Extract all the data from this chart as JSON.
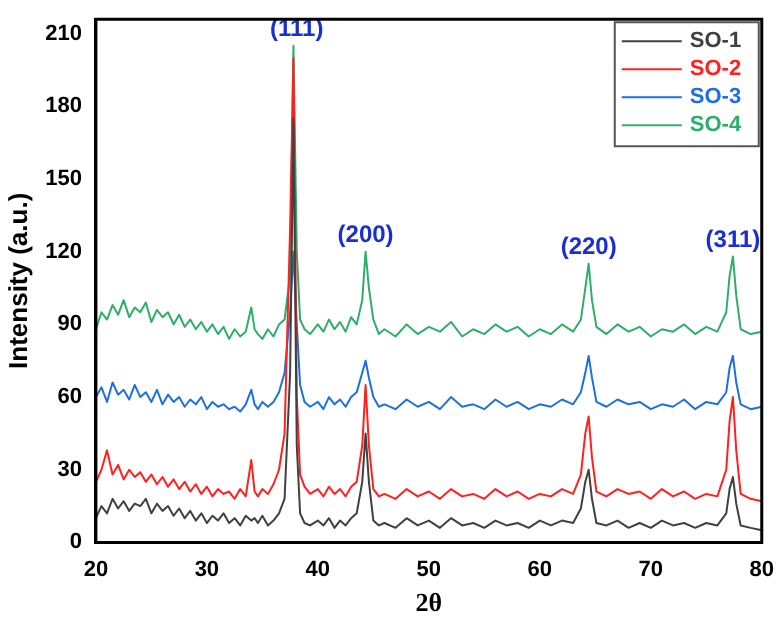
{
  "chart_data": {
    "type": "line",
    "xlabel": "2θ",
    "ylabel": "Intensity (a.u.)",
    "x": [
      20,
      20.5,
      21,
      21.5,
      22,
      22.5,
      23,
      23.5,
      24,
      24.5,
      25,
      25.5,
      26,
      26.5,
      27,
      27.5,
      28,
      28.5,
      29,
      29.5,
      30,
      30.5,
      31,
      31.5,
      32,
      32.5,
      33,
      33.5,
      34,
      34.3,
      34.6,
      35,
      35.5,
      36,
      36.5,
      37,
      37.5,
      37.8,
      38.1,
      38.4,
      38.8,
      39.3,
      40,
      40.5,
      41,
      41.5,
      42,
      42.5,
      43,
      43.5,
      44,
      44.3,
      44.6,
      45,
      45.5,
      46,
      47,
      48,
      49,
      50,
      51,
      52,
      53,
      54,
      55,
      56,
      57,
      58,
      59,
      60,
      61,
      62,
      63,
      63.7,
      64.1,
      64.4,
      64.7,
      65.1,
      66,
      67,
      68,
      69,
      70,
      71,
      72,
      73,
      74,
      75,
      76,
      76.8,
      77.1,
      77.4,
      77.7,
      78.1,
      79,
      80
    ],
    "series": [
      {
        "name": "SO-1",
        "color": "#404040",
        "values": [
          10,
          15,
          12,
          18,
          14,
          17,
          13,
          16,
          15,
          18,
          12,
          16,
          13,
          15,
          11,
          14,
          10,
          13,
          9,
          12,
          8,
          11,
          9,
          12,
          8,
          10,
          7,
          11,
          9,
          10,
          8,
          11,
          7,
          9,
          12,
          18,
          70,
          175,
          40,
          12,
          8,
          7,
          9,
          7,
          10,
          6,
          9,
          7,
          10,
          12,
          25,
          45,
          25,
          9,
          7,
          8,
          6,
          10,
          7,
          9,
          6,
          10,
          7,
          8,
          6,
          9,
          7,
          8,
          6,
          9,
          7,
          9,
          8,
          14,
          25,
          30,
          18,
          8,
          7,
          9,
          6,
          8,
          6,
          9,
          7,
          8,
          6,
          8,
          7,
          12,
          22,
          27,
          16,
          7,
          6,
          5
        ]
      },
      {
        "name": "SO-2",
        "color": "#ff2020",
        "values": [
          25,
          30,
          38,
          28,
          32,
          26,
          30,
          27,
          29,
          25,
          28,
          24,
          27,
          23,
          26,
          22,
          25,
          21,
          24,
          20,
          23,
          19,
          22,
          20,
          21,
          18,
          22,
          19,
          34,
          21,
          19,
          22,
          20,
          24,
          30,
          45,
          130,
          200,
          60,
          28,
          23,
          20,
          22,
          19,
          23,
          20,
          22,
          19,
          23,
          25,
          40,
          65,
          40,
          22,
          19,
          20,
          18,
          22,
          19,
          21,
          18,
          22,
          19,
          20,
          18,
          22,
          19,
          21,
          18,
          20,
          19,
          22,
          20,
          28,
          45,
          52,
          35,
          21,
          19,
          22,
          20,
          21,
          18,
          22,
          19,
          21,
          18,
          20,
          19,
          30,
          50,
          60,
          38,
          20,
          18,
          17
        ]
      },
      {
        "name": "SO-3",
        "color": "#1f6fe0",
        "values": [
          60,
          64,
          58,
          66,
          61,
          63,
          59,
          65,
          60,
          62,
          58,
          63,
          57,
          61,
          58,
          60,
          56,
          59,
          57,
          60,
          55,
          58,
          56,
          57,
          55,
          56,
          54,
          57,
          63,
          57,
          55,
          58,
          56,
          58,
          62,
          70,
          95,
          120,
          90,
          65,
          58,
          56,
          58,
          55,
          60,
          57,
          59,
          56,
          60,
          62,
          70,
          75,
          68,
          60,
          56,
          57,
          55,
          59,
          56,
          58,
          55,
          60,
          56,
          57,
          55,
          59,
          56,
          58,
          55,
          57,
          56,
          59,
          57,
          62,
          70,
          77,
          68,
          58,
          56,
          59,
          57,
          58,
          55,
          57,
          56,
          59,
          55,
          58,
          57,
          62,
          72,
          77,
          66,
          57,
          55,
          56
        ]
      },
      {
        "name": "SO-4",
        "color": "#2fae6a",
        "values": [
          88,
          95,
          92,
          98,
          94,
          100,
          93,
          97,
          95,
          99,
          91,
          96,
          93,
          95,
          90,
          94,
          89,
          92,
          88,
          91,
          87,
          90,
          86,
          89,
          84,
          88,
          85,
          87,
          97,
          88,
          86,
          84,
          88,
          85,
          90,
          92,
          110,
          205,
          120,
          92,
          88,
          86,
          90,
          87,
          92,
          88,
          91,
          87,
          93,
          90,
          100,
          120,
          105,
          92,
          86,
          88,
          85,
          90,
          86,
          89,
          87,
          91,
          85,
          88,
          86,
          90,
          87,
          89,
          85,
          88,
          86,
          90,
          87,
          92,
          105,
          115,
          100,
          89,
          86,
          90,
          87,
          89,
          85,
          88,
          87,
          90,
          86,
          89,
          87,
          95,
          110,
          118,
          102,
          88,
          86,
          87
        ]
      }
    ],
    "xlim": [
      20,
      80
    ],
    "xticks": [
      20,
      30,
      40,
      50,
      60,
      70,
      80
    ],
    "ylim": [
      0,
      216
    ],
    "yticks": [
      0,
      30,
      60,
      90,
      120,
      150,
      180,
      210
    ],
    "annotations": [
      {
        "text": "(111)",
        "x": 38.1,
        "y": 205
      },
      {
        "text": "(200)",
        "x": 44.3,
        "y": 120
      },
      {
        "text": "(220)",
        "x": 64.4,
        "y": 115
      },
      {
        "text": "(311)",
        "x": 77.4,
        "y": 118
      }
    ],
    "legend": "top right",
    "grid": false,
    "marker": "none",
    "line_style": "solid"
  }
}
